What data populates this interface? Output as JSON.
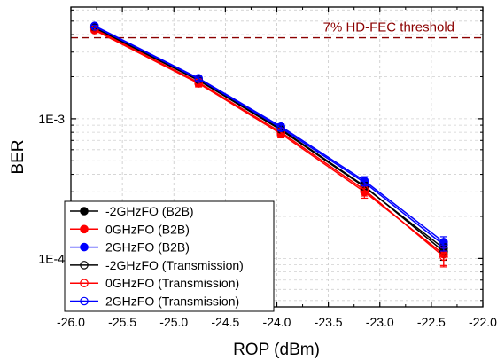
{
  "chart_data": {
    "type": "line",
    "title": "",
    "xlabel": "ROP (dBm)",
    "ylabel": "BER",
    "xlim": [
      -26.0,
      -22.0
    ],
    "ylim": [
      4.5e-05,
      0.0063
    ],
    "y_scale": "log",
    "grid": true,
    "legend_position": "bottom-left",
    "x_ticks": [
      -26.0,
      -25.5,
      -25.0,
      -24.5,
      -24.0,
      -23.5,
      -23.0,
      -22.5,
      -22.0
    ],
    "x_tick_labels": [
      "-26.0",
      "-25.5",
      "-25.0",
      "-24.5",
      "-24.0",
      "-23.5",
      "-23.0",
      "-22.5",
      "-22.0"
    ],
    "y_ticks": [
      0.0001,
      0.001
    ],
    "y_tick_labels": [
      "1E-4",
      "1E-3"
    ],
    "threshold": {
      "label": "7% HD-FEC threshold",
      "value": 0.0038,
      "color": "#8b0000"
    },
    "series": [
      {
        "name": "-2GHzFO (B2B)",
        "color": "#000000",
        "marker": "filled",
        "x": [
          -25.77,
          -24.76,
          -23.96,
          -23.15,
          -22.38
        ],
        "y": [
          0.00445,
          0.00188,
          0.00083,
          0.000325,
          0.000118
        ],
        "err": [
          0.00012,
          7e-05,
          4e-05,
          2e-05,
          1.2e-05
        ]
      },
      {
        "name": "0GHzFO (B2B)",
        "color": "#ff0000",
        "marker": "filled",
        "x": [
          -25.77,
          -24.76,
          -23.96,
          -23.15,
          -22.38
        ],
        "y": [
          0.0043,
          0.00179,
          0.00078,
          0.0003,
          0.000107
        ],
        "err": [
          0.00015,
          0.0001,
          5e-05,
          3e-05,
          1.8e-05
        ]
      },
      {
        "name": "2GHzFO (B2B)",
        "color": "#0000ff",
        "marker": "filled",
        "x": [
          -25.77,
          -24.76,
          -23.96,
          -23.15,
          -22.38
        ],
        "y": [
          0.00462,
          0.00195,
          0.00088,
          0.00036,
          0.000131
        ],
        "err": [
          0.0001,
          6e-05,
          4e-05,
          2.5e-05,
          1.2e-05
        ]
      },
      {
        "name": "-2GHzFO (Transmission)",
        "color": "#000000",
        "marker": "open",
        "x": [
          -25.77,
          -24.76,
          -23.96,
          -23.15,
          -22.38
        ],
        "y": [
          0.00448,
          0.0019,
          0.00084,
          0.00033,
          0.000112
        ],
        "err": [
          0.00012,
          7e-05,
          4e-05,
          2e-05,
          1.5e-05
        ]
      },
      {
        "name": "0GHzFO (Transmission)",
        "color": "#ff0000",
        "marker": "open",
        "x": [
          -25.77,
          -24.76,
          -23.96,
          -23.15,
          -22.38
        ],
        "y": [
          0.00438,
          0.00182,
          0.0008,
          0.00031,
          0.000103
        ],
        "err": [
          0.00015,
          0.0001,
          5e-05,
          3e-05,
          1.6e-05
        ]
      },
      {
        "name": "2GHzFO (Transmission)",
        "color": "#0000ff",
        "marker": "open",
        "x": [
          -25.77,
          -24.76,
          -23.96,
          -23.15,
          -22.38
        ],
        "y": [
          0.00458,
          0.00193,
          0.00086,
          0.00035,
          0.000125
        ],
        "err": [
          0.0001,
          6e-05,
          4e-05,
          2e-05,
          1.2e-05
        ]
      }
    ]
  }
}
